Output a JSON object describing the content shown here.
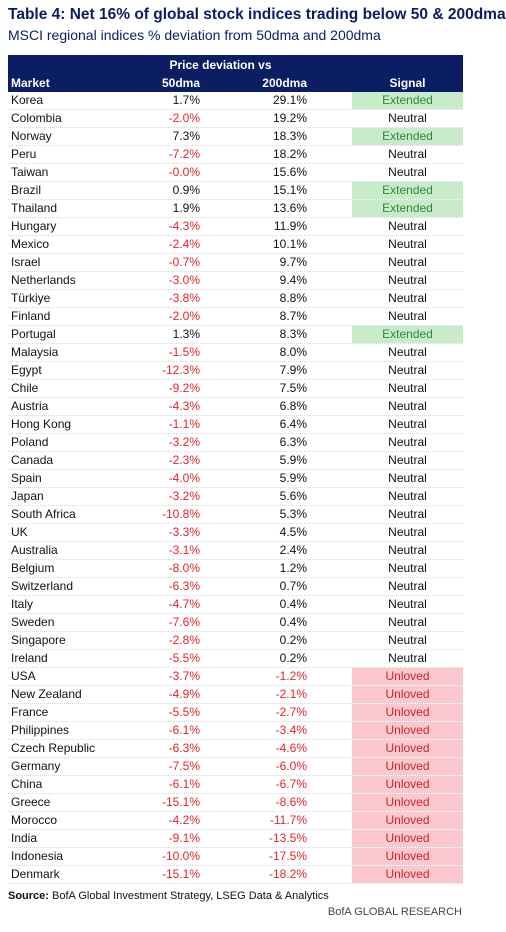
{
  "header": {
    "title": "Table 4: Net 16% of global stock indices trading below 50 & 200dma",
    "subtitle": "MSCI regional indices % deviation from 50dma and 200dma"
  },
  "table": {
    "group_header": "Price deviation vs",
    "columns": [
      "Market",
      "50dma",
      "200dma",
      "Signal"
    ],
    "negative_color": "#e3242b",
    "signal_colors": {
      "Extended": {
        "bg": "#c8ecc9",
        "text": "#2f8a3a"
      },
      "Unloved": {
        "bg": "#f9c9cd",
        "text": "#d81e2a"
      }
    },
    "rows": [
      [
        "Korea",
        "1.7%",
        "29.1%",
        "Extended"
      ],
      [
        "Colombia",
        "-2.0%",
        "19.2%",
        "Neutral"
      ],
      [
        "Norway",
        "7.3%",
        "18.3%",
        "Extended"
      ],
      [
        "Peru",
        "-7.2%",
        "18.2%",
        "Neutral"
      ],
      [
        "Taiwan",
        "-0.0%",
        "15.6%",
        "Neutral"
      ],
      [
        "Brazil",
        "0.9%",
        "15.1%",
        "Extended"
      ],
      [
        "Thailand",
        "1.9%",
        "13.6%",
        "Extended"
      ],
      [
        "Hungary",
        "-4.3%",
        "11.9%",
        "Neutral"
      ],
      [
        "Mexico",
        "-2.4%",
        "10.1%",
        "Neutral"
      ],
      [
        "Israel",
        "-0.7%",
        "9.7%",
        "Neutral"
      ],
      [
        "Netherlands",
        "-3.0%",
        "9.4%",
        "Neutral"
      ],
      [
        "Türkiye",
        "-3.8%",
        "8.8%",
        "Neutral"
      ],
      [
        "Finland",
        "-2.0%",
        "8.7%",
        "Neutral"
      ],
      [
        "Portugal",
        "1.3%",
        "8.3%",
        "Extended"
      ],
      [
        "Malaysia",
        "-1.5%",
        "8.0%",
        "Neutral"
      ],
      [
        "Egypt",
        "-12.3%",
        "7.9%",
        "Neutral"
      ],
      [
        "Chile",
        "-9.2%",
        "7.5%",
        "Neutral"
      ],
      [
        "Austria",
        "-4.3%",
        "6.8%",
        "Neutral"
      ],
      [
        "Hong Kong",
        "-1.1%",
        "6.4%",
        "Neutral"
      ],
      [
        "Poland",
        "-3.2%",
        "6.3%",
        "Neutral"
      ],
      [
        "Canada",
        "-2.3%",
        "5.9%",
        "Neutral"
      ],
      [
        "Spain",
        "-4.0%",
        "5.9%",
        "Neutral"
      ],
      [
        "Japan",
        "-3.2%",
        "5.6%",
        "Neutral"
      ],
      [
        "South Africa",
        "-10.8%",
        "5.3%",
        "Neutral"
      ],
      [
        "UK",
        "-3.3%",
        "4.5%",
        "Neutral"
      ],
      [
        "Australia",
        "-3.1%",
        "2.4%",
        "Neutral"
      ],
      [
        "Belgium",
        "-8.0%",
        "1.2%",
        "Neutral"
      ],
      [
        "Switzerland",
        "-6.3%",
        "0.7%",
        "Neutral"
      ],
      [
        "Italy",
        "-4.7%",
        "0.4%",
        "Neutral"
      ],
      [
        "Sweden",
        "-7.6%",
        "0.4%",
        "Neutral"
      ],
      [
        "Singapore",
        "-2.8%",
        "0.2%",
        "Neutral"
      ],
      [
        "Ireland",
        "-5.5%",
        "0.2%",
        "Neutral"
      ],
      [
        "USA",
        "-3.7%",
        "-1.2%",
        "Unloved"
      ],
      [
        "New Zealand",
        "-4.9%",
        "-2.1%",
        "Unloved"
      ],
      [
        "France",
        "-5.5%",
        "-2.7%",
        "Unloved"
      ],
      [
        "Philippines",
        "-6.1%",
        "-3.4%",
        "Unloved"
      ],
      [
        "Czech Republic",
        "-6.3%",
        "-4.6%",
        "Unloved"
      ],
      [
        "Germany",
        "-7.5%",
        "-6.0%",
        "Unloved"
      ],
      [
        "China",
        "-6.1%",
        "-6.7%",
        "Unloved"
      ],
      [
        "Greece",
        "-15.1%",
        "-8.6%",
        "Unloved"
      ],
      [
        "Morocco",
        "-4.2%",
        "-11.7%",
        "Unloved"
      ],
      [
        "India",
        "-9.1%",
        "-13.5%",
        "Unloved"
      ],
      [
        "Indonesia",
        "-10.0%",
        "-17.5%",
        "Unloved"
      ],
      [
        "Denmark",
        "-15.1%",
        "-18.2%",
        "Unloved"
      ]
    ]
  },
  "footer": {
    "source_label": "Source:",
    "source_text": "BofA Global Investment Strategy, LSEG Data & Analytics",
    "brand": "BofA GLOBAL RESEARCH"
  }
}
